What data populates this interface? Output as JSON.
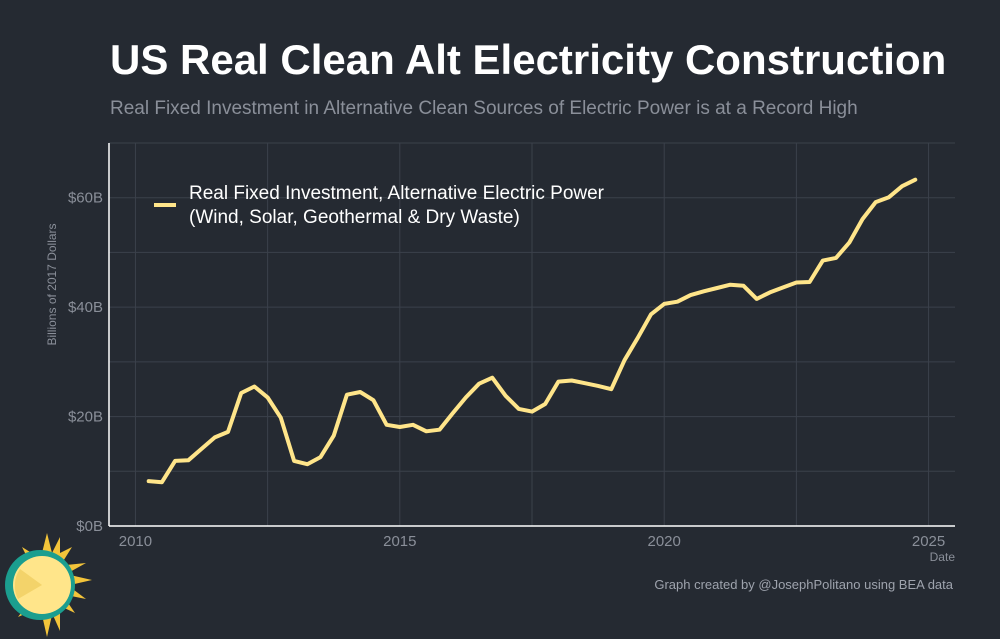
{
  "header": {
    "title": "US Real Clean Alt Electricity Construction",
    "subtitle": "Real Fixed Investment in Alternative Clean Sources of Electric Power is at a Record High"
  },
  "footer": {
    "caption": "Graph created by @JosephPolitano using BEA data"
  },
  "colors": {
    "background": "#252a32",
    "line": "#ffe58a",
    "grid": "#3b414b",
    "axis": "#ffffff",
    "tick_text": "#8a8f99"
  },
  "chart_data": {
    "type": "line",
    "title": "US Real Clean Alt Electricity Construction",
    "subtitle": "Real Fixed Investment in Alternative Clean Sources of Electric Power is at a Record High",
    "xlabel": "Date",
    "ylabel": "Billions of 2017 Dollars",
    "xlim": [
      2009.5,
      2025.5
    ],
    "ylim": [
      0,
      70
    ],
    "x_ticks": [
      2010,
      2015,
      2020,
      2025
    ],
    "x_tick_labels": [
      "2010",
      "2015",
      "2020",
      "2025"
    ],
    "y_ticks": [
      0,
      20,
      40,
      60
    ],
    "y_tick_labels": [
      "$0B",
      "$20B",
      "$40B",
      "$60B"
    ],
    "grid": true,
    "legend_position": "top-left",
    "series": [
      {
        "name": "Real Fixed Investment, Alternative Electric Power\n(Wind, Solar, Geothermal & Dry Waste)",
        "color": "#ffe58a",
        "x": [
          2010.25,
          2010.5,
          2010.75,
          2011.0,
          2011.25,
          2011.5,
          2011.75,
          2012.0,
          2012.25,
          2012.5,
          2012.75,
          2013.0,
          2013.25,
          2013.5,
          2013.75,
          2014.0,
          2014.25,
          2014.5,
          2014.75,
          2015.0,
          2015.25,
          2015.5,
          2015.75,
          2016.0,
          2016.25,
          2016.5,
          2016.75,
          2017.0,
          2017.25,
          2017.5,
          2017.75,
          2018.0,
          2018.25,
          2018.5,
          2018.75,
          2019.0,
          2019.25,
          2019.5,
          2019.75,
          2020.0,
          2020.25,
          2020.5,
          2020.75,
          2021.0,
          2021.25,
          2021.5,
          2021.75,
          2022.0,
          2022.25,
          2022.5,
          2022.75,
          2023.0,
          2023.25,
          2023.5,
          2023.75,
          2024.0,
          2024.25,
          2024.5,
          2024.75
        ],
        "y": [
          8.2,
          8.0,
          11.9,
          12.0,
          14.1,
          16.2,
          17.2,
          24.3,
          25.5,
          23.5,
          19.8,
          11.9,
          11.3,
          12.6,
          16.5,
          24.0,
          24.5,
          23.0,
          18.5,
          18.1,
          18.5,
          17.3,
          17.6,
          20.6,
          23.5,
          26.0,
          27.1,
          23.8,
          21.4,
          20.9,
          22.3,
          26.4,
          26.6,
          26.1,
          25.6,
          25.0,
          30.3,
          34.4,
          38.7,
          40.6,
          41.0,
          42.2,
          42.9,
          43.5,
          44.1,
          43.9,
          41.5,
          42.7,
          43.6,
          44.5,
          44.6,
          48.5,
          49.0,
          51.8,
          56.1,
          59.2,
          60.1,
          62.1,
          63.3
        ]
      }
    ]
  }
}
